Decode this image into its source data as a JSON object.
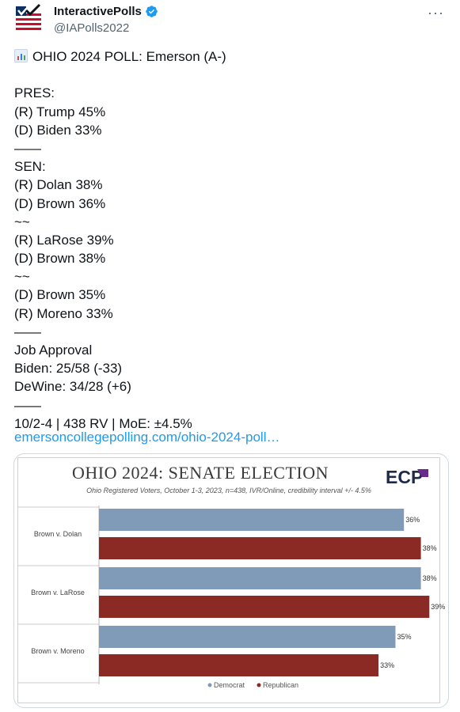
{
  "author": {
    "display_name": "InteractivePolls",
    "handle": "@IAPolls2022",
    "verified": true
  },
  "icons": {
    "avatar": "us-flag-checkmark-icon",
    "verified": "verified-badge-icon",
    "more": "more-options-icon",
    "chart_emoji": "bar-chart-icon"
  },
  "colors": {
    "democrat": "#7f9bb8",
    "republican": "#8b2a24",
    "link": "#1d9bf0",
    "verified": "#1d9bf0"
  },
  "more_label": "···",
  "tweet": {
    "headline": "OHIO 2024 POLL: Emerson (A-)",
    "lines": [
      "",
      "PRES:",
      "(R) Trump 45%",
      "(D) Biden 33%",
      "——",
      "SEN:",
      "(R) Dolan 38%",
      "(D) Brown 36%",
      "~~",
      "(R) LaRose 39%",
      "(D) Brown 38%",
      "~~",
      "(D) Brown 35%",
      "(R) Moreno 33%",
      "——",
      "Job Approval",
      "Biden: 25/58 (-33)",
      "DeWine: 34/28 (+6)",
      "——",
      "10/2-4 | 438 RV | MoE: ±4.5%"
    ],
    "link_text": "emersoncollegepolling.com/ohio-2024-poll…"
  },
  "media": {
    "logo_text": "ECP",
    "chart_data": {
      "type": "bar",
      "orientation": "horizontal",
      "title": "OHIO 2024: SENATE ELECTION",
      "subtitle": "Ohio Registered Voters, October 1-3, 2023, n=438, IVR/Online, credibility interval +/- 4.5%",
      "categories": [
        "Brown v. Dolan",
        "Brown v. LaRose",
        "Brown v. Moreno"
      ],
      "series": [
        {
          "name": "Democrat",
          "values": [
            36,
            38,
            35
          ],
          "labels": [
            "36%",
            "38%",
            "35%"
          ],
          "color": "#7f9bb8"
        },
        {
          "name": "Republican",
          "values": [
            38,
            39,
            33
          ],
          "labels": [
            "38%",
            "39%",
            "33%"
          ],
          "color": "#8b2a24"
        }
      ],
      "xlim": [
        0,
        40
      ],
      "grid": false,
      "legend_position": "bottom"
    }
  }
}
